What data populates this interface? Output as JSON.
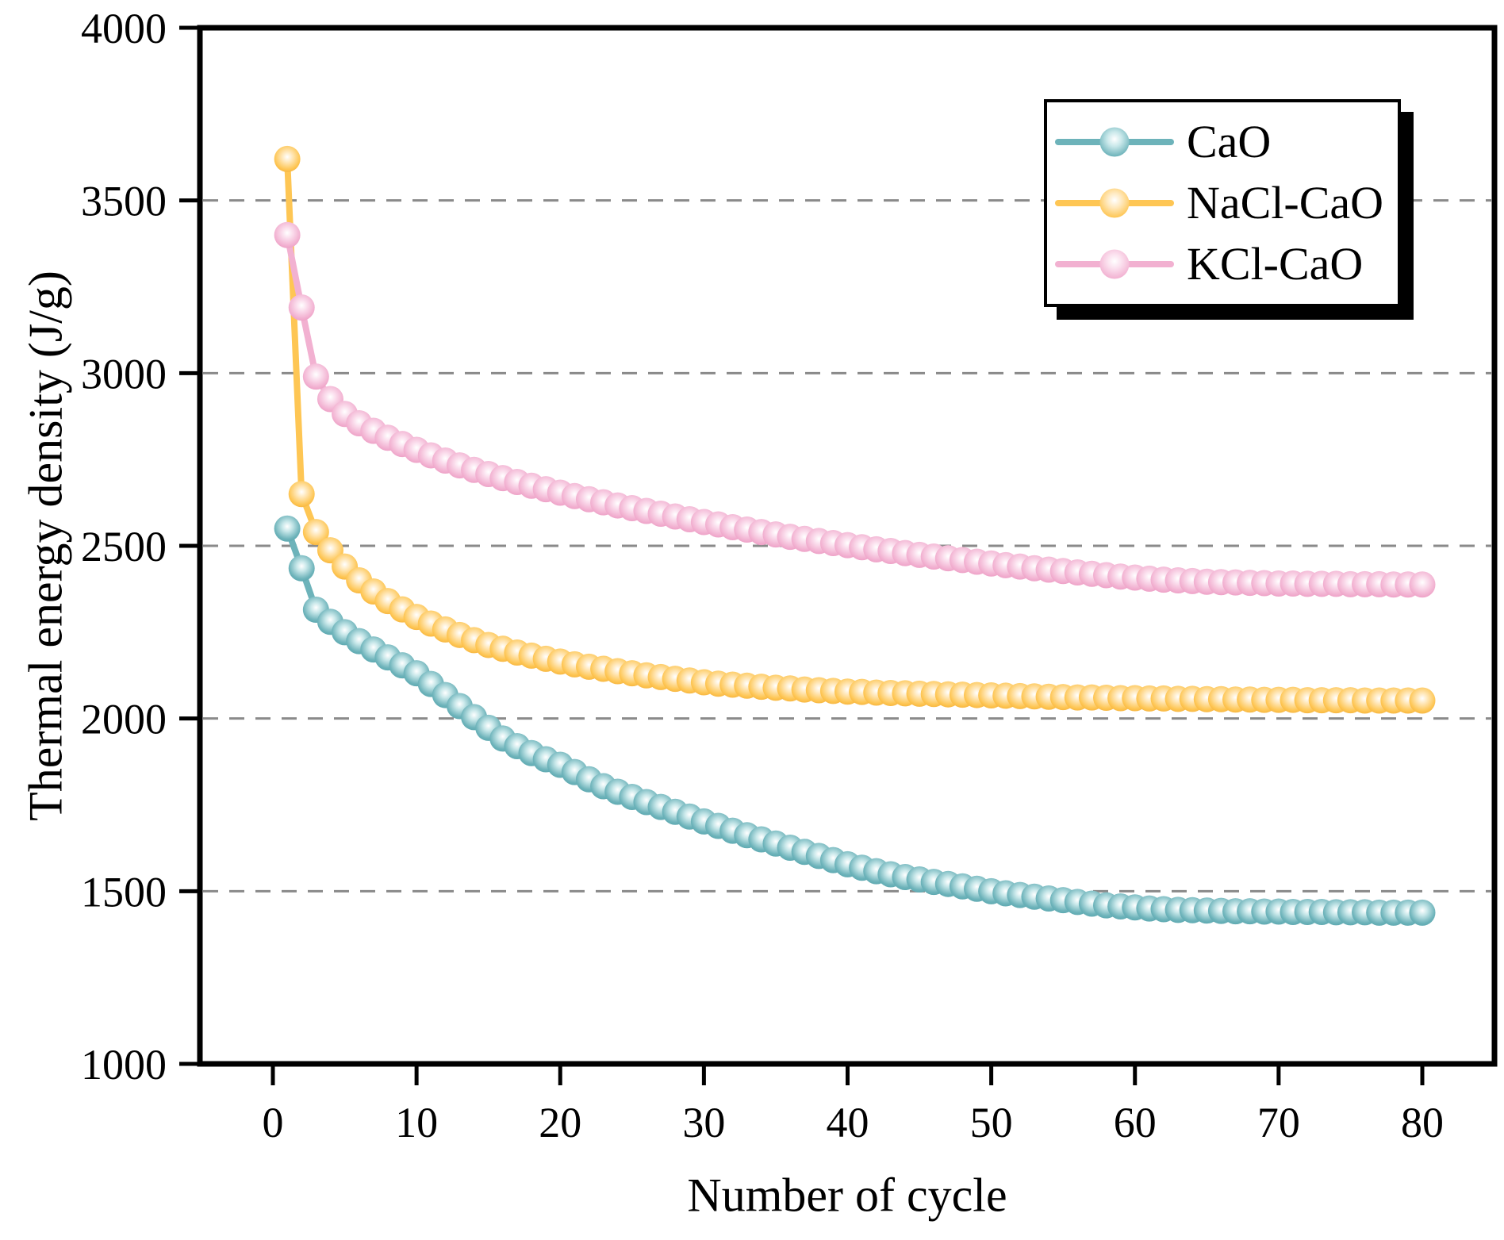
{
  "chart_data": {
    "type": "line",
    "title": "",
    "xlabel": "Number of cycle",
    "ylabel": "Thermal energy density (J/g)",
    "xlim": [
      -5,
      85
    ],
    "ylim": [
      1000,
      4000
    ],
    "x_ticks": [
      0,
      10,
      20,
      30,
      40,
      50,
      60,
      70,
      80
    ],
    "y_ticks": [
      1000,
      1500,
      2000,
      2500,
      3000,
      3500,
      4000
    ],
    "grid": "horizontal-dashed-at-1500-to-3500",
    "grid_color": "#8a8a8a",
    "axis_color": "#000000",
    "legend_position": "top-right",
    "legend_shadow_color": "#000000",
    "x": [
      1,
      2,
      3,
      4,
      5,
      6,
      7,
      8,
      9,
      10,
      11,
      12,
      13,
      14,
      15,
      16,
      17,
      18,
      19,
      20,
      21,
      22,
      23,
      24,
      25,
      26,
      27,
      28,
      29,
      30,
      31,
      32,
      33,
      34,
      35,
      36,
      37,
      38,
      39,
      40,
      41,
      42,
      43,
      44,
      45,
      46,
      47,
      48,
      49,
      50,
      51,
      52,
      53,
      54,
      55,
      56,
      57,
      58,
      59,
      60,
      61,
      62,
      63,
      64,
      65,
      66,
      67,
      68,
      69,
      70,
      71,
      72,
      73,
      74,
      75,
      76,
      77,
      78,
      79,
      80
    ],
    "series": [
      {
        "name": "CaO",
        "color": "#6DB3BA",
        "color_pale": "#C9E8EA",
        "color_dark": "#5AA6AE",
        "values": [
          2550,
          2435,
          2315,
          2280,
          2250,
          2224,
          2200,
          2177,
          2154,
          2131,
          2100,
          2068,
          2036,
          2004,
          1973,
          1942,
          1920,
          1900,
          1882,
          1866,
          1845,
          1824,
          1804,
          1788,
          1773,
          1758,
          1744,
          1730,
          1716,
          1702,
          1689,
          1675,
          1662,
          1650,
          1638,
          1626,
          1614,
          1602,
          1590,
          1578,
          1568,
          1558,
          1549,
          1541,
          1534,
          1527,
          1521,
          1514,
          1507,
          1500,
          1494,
          1489,
          1484,
          1479,
          1474,
          1469,
          1464,
          1459,
          1456,
          1453,
          1450,
          1448,
          1446,
          1445,
          1444,
          1443,
          1442,
          1442,
          1441,
          1441,
          1440,
          1440,
          1440,
          1439,
          1439,
          1439,
          1438,
          1438,
          1438,
          1438
        ]
      },
      {
        "name": "NaCl-CaO",
        "color": "#FEC654",
        "color_pale": "#FFE9BE",
        "color_dark": "#F5B23B",
        "values": [
          3620,
          2650,
          2540,
          2487,
          2440,
          2400,
          2368,
          2340,
          2316,
          2294,
          2275,
          2258,
          2242,
          2227,
          2213,
          2202,
          2191,
          2182,
          2173,
          2165,
          2157,
          2150,
          2144,
          2137,
          2131,
          2125,
          2120,
          2115,
          2110,
          2105,
          2101,
          2098,
          2095,
          2092,
          2089,
          2087,
          2084,
          2082,
          2080,
          2078,
          2077,
          2075,
          2074,
          2073,
          2072,
          2071,
          2070,
          2069,
          2068,
          2067,
          2066,
          2065,
          2064,
          2063,
          2062,
          2061,
          2061,
          2060,
          2059,
          2059,
          2058,
          2058,
          2057,
          2057,
          2056,
          2056,
          2055,
          2055,
          2054,
          2054,
          2054,
          2053,
          2053,
          2053,
          2053,
          2052,
          2052,
          2052,
          2052,
          2052
        ]
      },
      {
        "name": "KCl-CaO",
        "color": "#F2B1D1",
        "color_pale": "#FBE0EE",
        "color_dark": "#EC9CC3",
        "values": [
          3400,
          3190,
          2990,
          2925,
          2882,
          2855,
          2833,
          2813,
          2795,
          2778,
          2762,
          2747,
          2733,
          2720,
          2708,
          2696,
          2685,
          2674,
          2664,
          2654,
          2644,
          2635,
          2626,
          2617,
          2609,
          2601,
          2593,
          2585,
          2577,
          2569,
          2562,
          2554,
          2547,
          2540,
          2533,
          2526,
          2520,
          2514,
          2508,
          2502,
          2496,
          2490,
          2485,
          2479,
          2474,
          2469,
          2464,
          2459,
          2454,
          2449,
          2444,
          2440,
          2435,
          2431,
          2427,
          2423,
          2419,
          2415,
          2411,
          2408,
          2405,
          2402,
          2400,
          2398,
          2396,
          2395,
          2394,
          2393,
          2392,
          2391,
          2391,
          2390,
          2390,
          2390,
          2389,
          2389,
          2389,
          2388,
          2388,
          2388
        ]
      }
    ]
  }
}
